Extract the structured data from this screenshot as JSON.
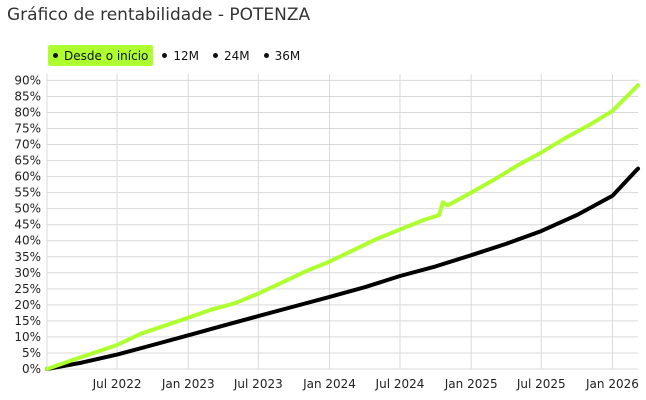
{
  "title": "Gráfico de rentabilidade - POTENZA",
  "tabs": [
    {
      "label": "Desde o início",
      "active": true
    },
    {
      "label": "12M",
      "active": false
    },
    {
      "label": "24M",
      "active": false
    },
    {
      "label": "36M",
      "active": false
    }
  ],
  "colors": {
    "fund": "#adff2f",
    "benchmark": "#000000",
    "grid": "#d9d9d9",
    "active_tab": "#adff2f"
  },
  "chart_data": {
    "type": "line",
    "title": "Gráfico de rentabilidade - POTENZA",
    "xlabel": "",
    "ylabel": "",
    "xlim": [
      "2022-01-01",
      "2026-03-08"
    ],
    "ylim": [
      0,
      0.92
    ],
    "y_ticks": [
      0,
      0.05,
      0.1,
      0.15,
      0.2,
      0.25,
      0.3,
      0.35,
      0.4,
      0.45,
      0.5,
      0.55,
      0.6,
      0.65,
      0.7,
      0.75,
      0.8,
      0.85,
      0.9
    ],
    "y_tick_labels": [
      "0%",
      "5%",
      "10%",
      "15%",
      "20%",
      "25%",
      "30%",
      "35%",
      "40%",
      "45%",
      "50%",
      "55%",
      "60%",
      "65%",
      "70%",
      "75%",
      "80%",
      "85%",
      "90%"
    ],
    "x_ticks": [
      "2022-07-01",
      "2023-01-01",
      "2023-07-01",
      "2024-01-01",
      "2024-07-01",
      "2025-01-01",
      "2025-07-01",
      "2026-01-01"
    ],
    "x_tick_labels": [
      "Jul 2022",
      "Jan 2023",
      "Jul 2023",
      "Jan 2024",
      "Jul 2024",
      "Jan 2025",
      "Jul 2025",
      "Jan 2026"
    ],
    "grid": true,
    "series": [
      {
        "color": "#adff2f",
        "x": [
          "2022-01-01",
          "2022-03-01",
          "2022-05-01",
          "2022-07-01",
          "2022-09-01",
          "2022-11-01",
          "2023-01-01",
          "2023-03-01",
          "2023-05-01",
          "2023-07-01",
          "2023-09-01",
          "2023-11-01",
          "2024-01-01",
          "2024-03-01",
          "2024-05-01",
          "2024-07-01",
          "2024-09-01",
          "2024-10-10",
          "2024-10-20",
          "2024-11-01",
          "2025-01-01",
          "2025-03-01",
          "2025-05-01",
          "2025-07-01",
          "2025-09-01",
          "2025-11-01",
          "2026-01-01",
          "2026-03-08"
        ],
        "y": [
          0.0,
          0.025,
          0.05,
          0.075,
          0.11,
          0.135,
          0.16,
          0.185,
          0.205,
          0.235,
          0.27,
          0.305,
          0.335,
          0.37,
          0.405,
          0.435,
          0.465,
          0.48,
          0.52,
          0.51,
          0.55,
          0.59,
          0.635,
          0.675,
          0.72,
          0.76,
          0.805,
          0.885
        ]
      },
      {
        "color": "#000000",
        "x": [
          "2022-01-01",
          "2022-04-01",
          "2022-07-01",
          "2022-10-01",
          "2023-01-01",
          "2023-04-01",
          "2023-07-01",
          "2023-10-01",
          "2024-01-01",
          "2024-04-01",
          "2024-07-01",
          "2024-10-01",
          "2025-01-01",
          "2025-04-01",
          "2025-07-01",
          "2025-10-01",
          "2026-01-01",
          "2026-03-08"
        ],
        "y": [
          0.0,
          0.02,
          0.045,
          0.075,
          0.105,
          0.135,
          0.165,
          0.195,
          0.225,
          0.255,
          0.29,
          0.32,
          0.355,
          0.39,
          0.43,
          0.48,
          0.54,
          0.625
        ]
      }
    ]
  }
}
